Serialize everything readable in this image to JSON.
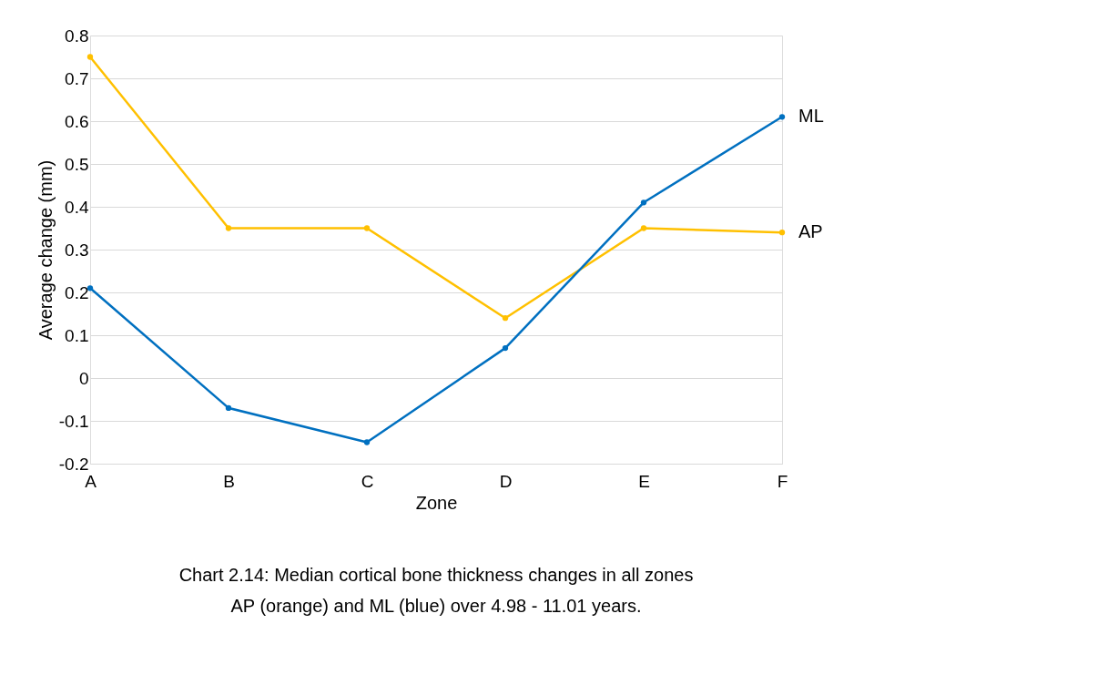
{
  "chart_data": {
    "type": "line",
    "xlabel": "Zone",
    "ylabel": "Average change (mm)",
    "categories": [
      "A",
      "B",
      "C",
      "D",
      "E",
      "F"
    ],
    "series": [
      {
        "name": "AP",
        "color": "#ffc000",
        "values": [
          0.75,
          0.35,
          0.35,
          0.14,
          0.35,
          0.34
        ]
      },
      {
        "name": "ML",
        "color": "#0070c0",
        "values": [
          0.21,
          -0.07,
          -0.15,
          0.07,
          0.41,
          0.61
        ]
      }
    ],
    "ylim": [
      -0.2,
      0.8
    ],
    "yticks": [
      -0.2,
      -0.1,
      0,
      0.1,
      0.2,
      0.3,
      0.4,
      0.5,
      0.6,
      0.7,
      0.8
    ],
    "grid": "y",
    "legend": false,
    "marker": "circle",
    "line_style": "solid",
    "annotations": [
      "Chart 2.14: Median cortical bone thickness changes in all zones",
      "AP (orange) and ML (blue) over 4.98 - 11.01 years."
    ]
  }
}
